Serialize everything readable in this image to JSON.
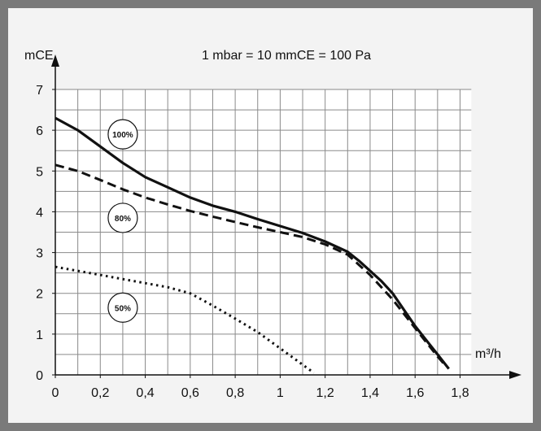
{
  "chart_data": {
    "type": "line",
    "annotation": "1 mbar = 10 mmCE = 100 Pa",
    "xlabel": "m³/h",
    "ylabel": "mCE",
    "xlim": [
      0,
      1.85
    ],
    "ylim": [
      0,
      7
    ],
    "x_ticks": [
      "0",
      "0,2",
      "0,4",
      "0,6",
      "0,8",
      "1",
      "1,2",
      "1,4",
      "1,6",
      "1,8"
    ],
    "y_ticks": [
      "0",
      "1",
      "2",
      "3",
      "4",
      "5",
      "6",
      "7"
    ],
    "grid": true,
    "series": [
      {
        "name": "100%",
        "style": "solid",
        "x": [
          0,
          0.1,
          0.2,
          0.3,
          0.4,
          0.5,
          0.6,
          0.7,
          0.8,
          0.9,
          1.0,
          1.1,
          1.2,
          1.3,
          1.35,
          1.4,
          1.45,
          1.5,
          1.55,
          1.6,
          1.65,
          1.7,
          1.75
        ],
        "y": [
          6.3,
          6.0,
          5.6,
          5.2,
          4.85,
          4.6,
          4.35,
          4.15,
          4.0,
          3.82,
          3.65,
          3.48,
          3.27,
          3.02,
          2.8,
          2.55,
          2.3,
          2.0,
          1.6,
          1.2,
          0.85,
          0.5,
          0.15
        ]
      },
      {
        "name": "80%",
        "style": "dashed",
        "x": [
          0,
          0.1,
          0.2,
          0.3,
          0.4,
          0.5,
          0.6,
          0.7,
          0.8,
          0.9,
          1.0,
          1.1,
          1.2,
          1.3,
          1.35,
          1.4,
          1.45,
          1.5,
          1.55,
          1.6,
          1.65,
          1.7,
          1.74
        ],
        "y": [
          5.15,
          5.0,
          4.78,
          4.55,
          4.35,
          4.18,
          4.02,
          3.88,
          3.75,
          3.62,
          3.5,
          3.38,
          3.2,
          2.95,
          2.7,
          2.45,
          2.15,
          1.85,
          1.5,
          1.15,
          0.8,
          0.45,
          0.2
        ]
      },
      {
        "name": "50%",
        "style": "dotted",
        "x": [
          0,
          0.1,
          0.2,
          0.3,
          0.4,
          0.5,
          0.6,
          0.7,
          0.8,
          0.9,
          1.0,
          1.05,
          1.1,
          1.15
        ],
        "y": [
          2.65,
          2.55,
          2.45,
          2.35,
          2.25,
          2.15,
          2.0,
          1.7,
          1.38,
          1.05,
          0.65,
          0.45,
          0.25,
          0.05
        ]
      }
    ],
    "labels": [
      {
        "text": "100%",
        "x": 0.3,
        "y": 5.9
      },
      {
        "text": "80%",
        "x": 0.3,
        "y": 3.85
      },
      {
        "text": "50%",
        "x": 0.3,
        "y": 1.65
      }
    ]
  }
}
